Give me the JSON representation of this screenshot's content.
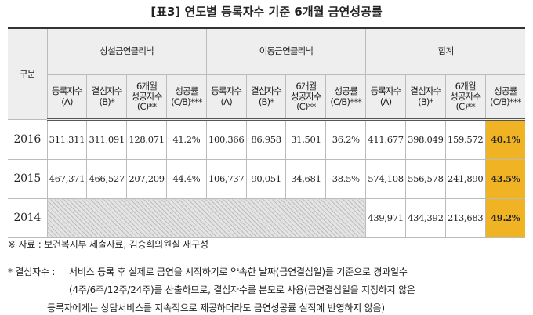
{
  "header": {
    "title": "[표3] 연도별 등록자수 기준 6개월 금연성공률"
  },
  "table": {
    "corner": "구분",
    "groups": [
      "상설금연클리닉",
      "이동금연클리닉",
      "합계"
    ],
    "columns": [
      "등록자수\n(A)",
      "결심자수\n(B)*",
      "6개월\n성공자수\n(C)**",
      "성공률\n(C/B)***"
    ],
    "rows": [
      {
        "label": "2016",
        "cells": [
          "311,311",
          "311,091",
          "128,071",
          "41.2%",
          "100,366",
          "86,958",
          "31,501",
          "36.2%",
          "411,677",
          "398,049",
          "159,572",
          "40.1%"
        ]
      },
      {
        "label": "2015",
        "cells": [
          "467,371",
          "466,527",
          "207,209",
          "44.4%",
          "106,737",
          "90,051",
          "34,681",
          "38.5%",
          "574,108",
          "556,578",
          "241,890",
          "43.5%"
        ]
      },
      {
        "label": "2014",
        "cells": [
          null,
          null,
          null,
          null,
          null,
          null,
          null,
          null,
          "439,971",
          "434,392",
          "213,683",
          "49.2%"
        ]
      }
    ]
  },
  "notes": {
    "source": "※ 자료 : 보건복지부 제출자료, 김승희의원실 재구성",
    "footnote_label": "* 결심자수 :",
    "footnote_lines": [
      "서비스 등록 후 실제로 금연을 시작하기로 약속한 날짜(금연결심일)를 기준으로 경과일수",
      "(4주/6주/12주/24주)를 산출하므로, 결심자수를 분모로 사용(금연결심일을 지정하지 않은",
      "등록자에게는 상담서비스를 지속적으로 제공하더라도 금연성공률 실적에 반영하지 않음)"
    ]
  }
}
